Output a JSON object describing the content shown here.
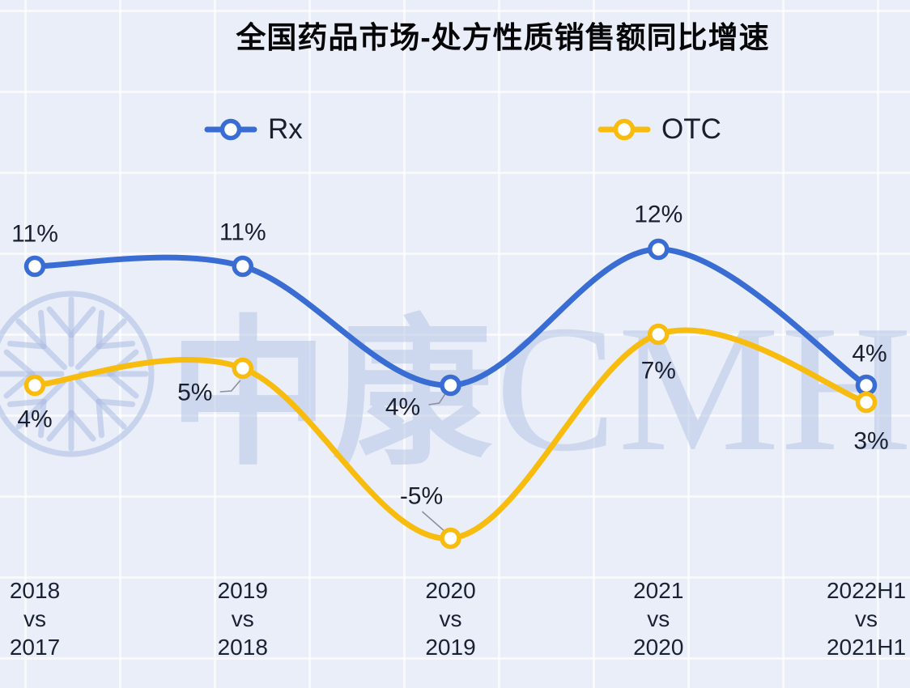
{
  "title": "全国药品市场-处方性质销售额同比增速",
  "watermark": {
    "cjk": "中康",
    "latin": "CMH"
  },
  "chart_data": {
    "type": "line",
    "smooth": true,
    "legend_position": "top",
    "grid": "faint white table grid on light blue background",
    "value_axis_visible": false,
    "unit": "%",
    "categories": [
      [
        "2018",
        "vs",
        "2017"
      ],
      [
        "2019",
        "vs",
        "2018"
      ],
      [
        "2020",
        "vs",
        "2019"
      ],
      [
        "2021",
        "vs",
        "2020"
      ],
      [
        "2022H1",
        "vs",
        "2021H1"
      ]
    ],
    "series": [
      {
        "name": "Rx",
        "color": "#3a6dd4",
        "values": [
          11,
          11,
          4,
          12,
          4
        ],
        "labels": [
          "11%",
          "11%",
          "4%",
          "12%",
          "4%"
        ]
      },
      {
        "name": "OTC",
        "color": "#f7bc0d",
        "values": [
          4,
          5,
          -5,
          7,
          3
        ],
        "labels": [
          "4%",
          "5%",
          "-5%",
          "7%",
          "3%"
        ]
      }
    ],
    "ylim": [
      -7,
      15
    ]
  },
  "colors": {
    "background": "#e9eef8",
    "label_text": "#1a1f2f",
    "axis_text": "#1b2132",
    "title_text": "#060608",
    "leader_line": "#8b8fa0",
    "watermark": "#b1c0e4"
  }
}
